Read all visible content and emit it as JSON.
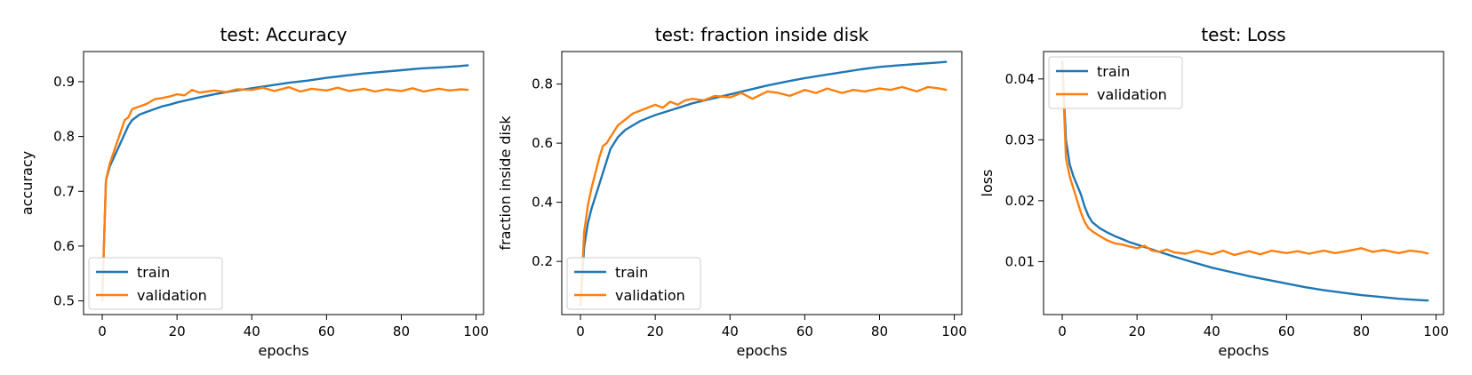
{
  "chart_data": [
    {
      "type": "line",
      "title": "test: Accuracy",
      "xlabel": "epochs",
      "ylabel": "accuracy",
      "xlim": [
        -5,
        102
      ],
      "ylim": [
        0.475,
        0.955
      ],
      "xticks": [
        0,
        20,
        40,
        60,
        80,
        100
      ],
      "yticks": [
        0.5,
        0.6,
        0.7,
        0.8,
        0.9
      ],
      "ytick_labels": [
        "0.5",
        "0.6",
        "0.7",
        "0.8",
        "0.9"
      ],
      "legend": "lower-left",
      "grid": false,
      "series": [
        {
          "name": "train",
          "color": "#1f77b4",
          "x": [
            0,
            1,
            2,
            3,
            4,
            5,
            6,
            7,
            8,
            10,
            12,
            14,
            16,
            18,
            20,
            25,
            30,
            35,
            40,
            45,
            50,
            55,
            60,
            65,
            70,
            75,
            80,
            85,
            90,
            95,
            98
          ],
          "y": [
            0.5,
            0.72,
            0.745,
            0.76,
            0.775,
            0.79,
            0.805,
            0.82,
            0.83,
            0.84,
            0.845,
            0.85,
            0.855,
            0.858,
            0.862,
            0.87,
            0.877,
            0.883,
            0.888,
            0.893,
            0.898,
            0.902,
            0.907,
            0.911,
            0.915,
            0.918,
            0.921,
            0.924,
            0.926,
            0.928,
            0.93
          ]
        },
        {
          "name": "validation",
          "color": "#ff7f0e",
          "x": [
            0,
            1,
            2,
            3,
            4,
            5,
            6,
            7,
            8,
            10,
            12,
            14,
            16,
            18,
            20,
            22,
            24,
            26,
            28,
            30,
            33,
            36,
            40,
            43,
            46,
            50,
            53,
            56,
            60,
            63,
            66,
            70,
            73,
            76,
            80,
            83,
            86,
            90,
            93,
            96,
            98
          ],
          "y": [
            0.5,
            0.72,
            0.75,
            0.77,
            0.79,
            0.81,
            0.83,
            0.835,
            0.85,
            0.855,
            0.86,
            0.868,
            0.87,
            0.873,
            0.877,
            0.875,
            0.885,
            0.88,
            0.882,
            0.884,
            0.881,
            0.886,
            0.885,
            0.889,
            0.883,
            0.89,
            0.882,
            0.887,
            0.884,
            0.889,
            0.883,
            0.887,
            0.882,
            0.886,
            0.883,
            0.888,
            0.882,
            0.887,
            0.884,
            0.886,
            0.885
          ]
        }
      ]
    },
    {
      "type": "line",
      "title": "test: fraction inside disk",
      "xlabel": "epochs",
      "ylabel": "fraction inside disk",
      "xlim": [
        -5,
        102
      ],
      "ylim": [
        0.02,
        0.91
      ],
      "xticks": [
        0,
        20,
        40,
        60,
        80,
        100
      ],
      "yticks": [
        0.2,
        0.4,
        0.6,
        0.8
      ],
      "ytick_labels": [
        "0.2",
        "0.4",
        "0.6",
        "0.8"
      ],
      "legend": "lower-left",
      "grid": false,
      "series": [
        {
          "name": "train",
          "color": "#1f77b4",
          "x": [
            0,
            1,
            2,
            3,
            4,
            5,
            6,
            7,
            8,
            10,
            12,
            14,
            16,
            18,
            20,
            25,
            30,
            35,
            40,
            45,
            50,
            55,
            60,
            65,
            70,
            75,
            80,
            85,
            90,
            95,
            98
          ],
          "y": [
            0.05,
            0.25,
            0.33,
            0.38,
            0.42,
            0.46,
            0.5,
            0.54,
            0.58,
            0.62,
            0.645,
            0.66,
            0.675,
            0.685,
            0.695,
            0.715,
            0.735,
            0.75,
            0.765,
            0.78,
            0.795,
            0.808,
            0.82,
            0.83,
            0.84,
            0.85,
            0.858,
            0.863,
            0.868,
            0.872,
            0.875
          ]
        },
        {
          "name": "validation",
          "color": "#ff7f0e",
          "x": [
            0,
            1,
            2,
            3,
            4,
            5,
            6,
            7,
            8,
            10,
            12,
            14,
            16,
            18,
            20,
            22,
            24,
            26,
            28,
            30,
            33,
            36,
            40,
            43,
            46,
            50,
            53,
            56,
            60,
            63,
            66,
            70,
            73,
            76,
            80,
            83,
            86,
            90,
            93,
            96,
            98
          ],
          "y": [
            0.05,
            0.3,
            0.39,
            0.45,
            0.5,
            0.55,
            0.59,
            0.6,
            0.62,
            0.66,
            0.68,
            0.7,
            0.71,
            0.72,
            0.73,
            0.72,
            0.74,
            0.73,
            0.745,
            0.75,
            0.745,
            0.76,
            0.755,
            0.77,
            0.75,
            0.775,
            0.77,
            0.76,
            0.78,
            0.77,
            0.785,
            0.77,
            0.78,
            0.775,
            0.785,
            0.78,
            0.79,
            0.775,
            0.79,
            0.785,
            0.78
          ]
        }
      ]
    },
    {
      "type": "line",
      "title": "test: Loss",
      "xlabel": "epochs",
      "ylabel": "loss",
      "xlim": [
        -5,
        102
      ],
      "ylim": [
        0.0013,
        0.0445
      ],
      "xticks": [
        0,
        20,
        40,
        60,
        80,
        100
      ],
      "yticks": [
        0.01,
        0.02,
        0.03,
        0.04
      ],
      "ytick_labels": [
        "0.01",
        "0.02",
        "0.03",
        "0.04"
      ],
      "legend": "upper-left",
      "grid": false,
      "series": [
        {
          "name": "train",
          "color": "#1f77b4",
          "x": [
            0,
            1,
            2,
            3,
            4,
            5,
            6,
            7,
            8,
            10,
            12,
            14,
            16,
            18,
            20,
            25,
            30,
            35,
            40,
            45,
            50,
            55,
            60,
            65,
            70,
            75,
            80,
            85,
            90,
            95,
            98
          ],
          "y": [
            0.043,
            0.03,
            0.026,
            0.024,
            0.0225,
            0.021,
            0.019,
            0.0175,
            0.0165,
            0.0155,
            0.0148,
            0.0142,
            0.0137,
            0.0132,
            0.0128,
            0.0118,
            0.0108,
            0.0099,
            0.009,
            0.0083,
            0.0076,
            0.007,
            0.0064,
            0.0058,
            0.0053,
            0.0049,
            0.0045,
            0.0042,
            0.0039,
            0.0037,
            0.0036
          ]
        },
        {
          "name": "validation",
          "color": "#ff7f0e",
          "x": [
            0,
            1,
            2,
            3,
            4,
            5,
            6,
            7,
            8,
            10,
            12,
            14,
            16,
            18,
            20,
            22,
            24,
            26,
            28,
            30,
            33,
            36,
            40,
            43,
            46,
            50,
            53,
            56,
            60,
            63,
            66,
            70,
            73,
            76,
            80,
            83,
            86,
            90,
            93,
            96,
            98
          ],
          "y": [
            0.043,
            0.027,
            0.024,
            0.022,
            0.02,
            0.018,
            0.0165,
            0.0155,
            0.015,
            0.0142,
            0.0135,
            0.013,
            0.0128,
            0.0125,
            0.0122,
            0.0126,
            0.0118,
            0.0116,
            0.012,
            0.0115,
            0.0113,
            0.0118,
            0.0112,
            0.0118,
            0.0111,
            0.0117,
            0.0112,
            0.0118,
            0.0114,
            0.0117,
            0.0113,
            0.0118,
            0.0114,
            0.0117,
            0.0122,
            0.0116,
            0.0119,
            0.0114,
            0.0118,
            0.0116,
            0.0113
          ]
        }
      ]
    }
  ]
}
